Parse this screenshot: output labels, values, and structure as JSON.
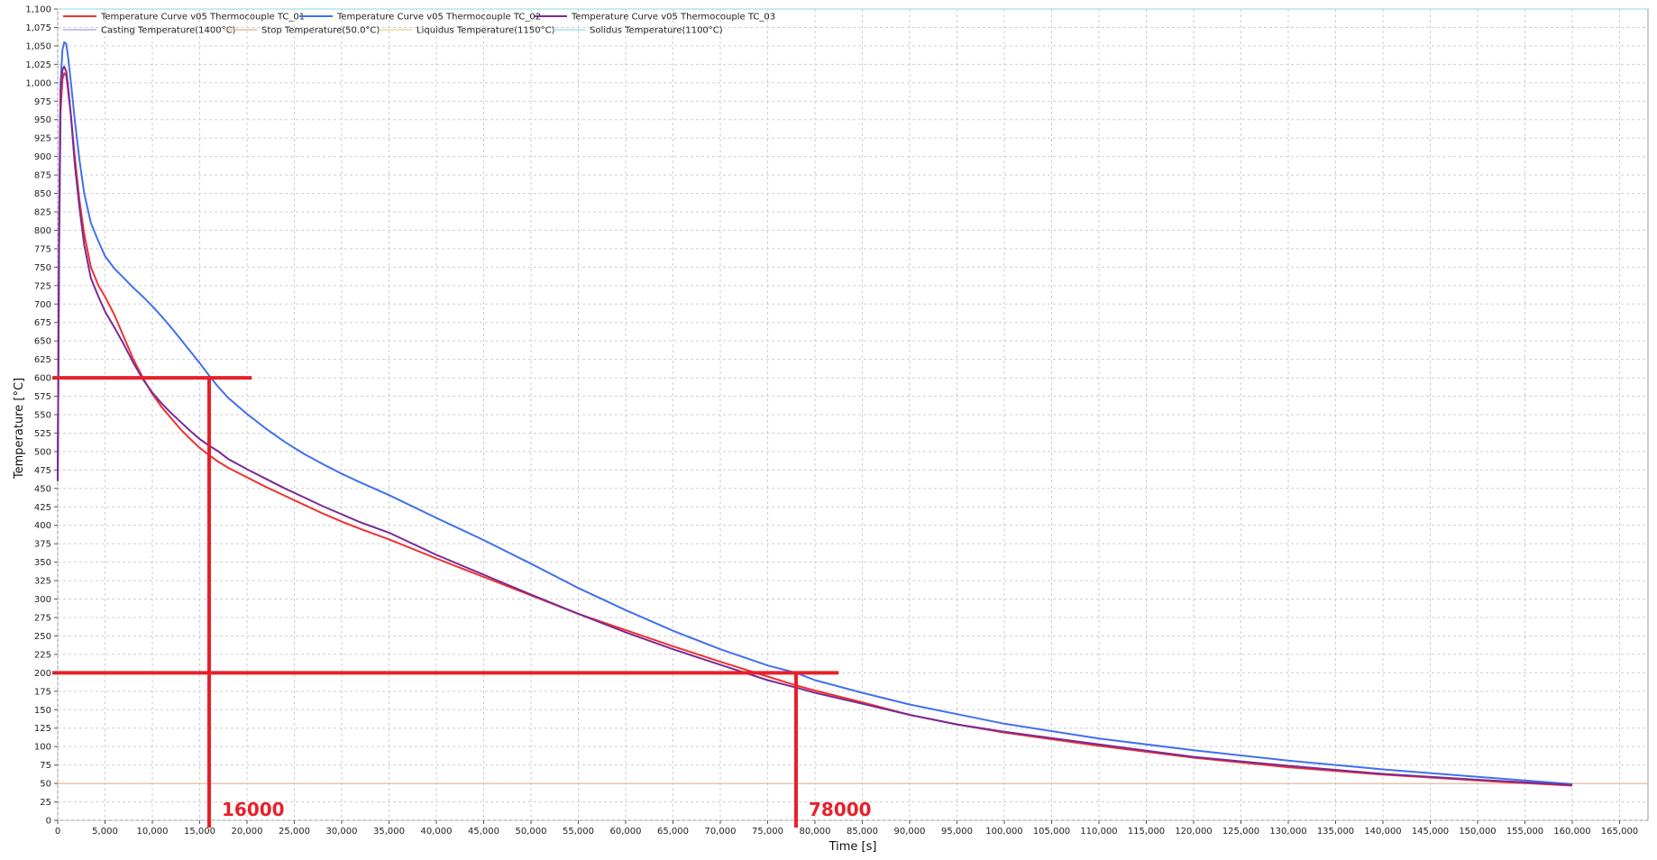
{
  "chart_data": {
    "type": "line",
    "xlabel": "Time [s]",
    "ylabel": "Temperature [°C]",
    "xlim": [
      0,
      168000
    ],
    "ylim": [
      0,
      1100
    ],
    "x_ticks": [
      0,
      5000,
      10000,
      15000,
      20000,
      25000,
      30000,
      35000,
      40000,
      45000,
      50000,
      55000,
      60000,
      65000,
      70000,
      75000,
      80000,
      85000,
      90000,
      95000,
      100000,
      105000,
      110000,
      115000,
      120000,
      125000,
      130000,
      135000,
      140000,
      145000,
      150000,
      155000,
      160000,
      165000
    ],
    "x_tick_labels": [
      "0",
      "5,000",
      "10,000",
      "15,000",
      "20,000",
      "25,000",
      "30,000",
      "35,000",
      "40,000",
      "45,000",
      "50,000",
      "55,000",
      "60,000",
      "65,000",
      "70,000",
      "75,000",
      "80,000",
      "85,000",
      "90,000",
      "95,000",
      "100,000",
      "105,000",
      "110,000",
      "115,000",
      "120,000",
      "125,000",
      "130,000",
      "135,000",
      "140,000",
      "145,000",
      "150,000",
      "155,000",
      "160,000",
      "165,000"
    ],
    "y_ticks": [
      0,
      25,
      50,
      75,
      100,
      125,
      150,
      175,
      200,
      225,
      250,
      275,
      300,
      325,
      350,
      375,
      400,
      425,
      450,
      475,
      500,
      525,
      550,
      575,
      600,
      625,
      650,
      675,
      700,
      725,
      750,
      775,
      800,
      825,
      850,
      875,
      900,
      925,
      950,
      975,
      1000,
      1025,
      1050,
      1075,
      1100
    ],
    "y_tick_labels": [
      "0",
      "25",
      "50",
      "75",
      "100",
      "125",
      "150",
      "175",
      "200",
      "225",
      "250",
      "275",
      "300",
      "325",
      "350",
      "375",
      "400",
      "425",
      "450",
      "475",
      "500",
      "525",
      "550",
      "575",
      "600",
      "625",
      "650",
      "675",
      "700",
      "725",
      "750",
      "775",
      "800",
      "825",
      "850",
      "875",
      "900",
      "925",
      "950",
      "975",
      "1,000",
      "1,025",
      "1,050",
      "1,075",
      "1,100"
    ],
    "grid": true,
    "legend_position": "top-left",
    "series": [
      {
        "name": "Temperature Curve  v05 Thermocouple TC_01",
        "color": "#f03030",
        "x": [
          0,
          150,
          300,
          500,
          700,
          900,
          1100,
          1400,
          1800,
          2300,
          2800,
          3500,
          4300,
          5000,
          6000,
          7000,
          8000,
          9000,
          10000,
          11000,
          12000,
          13000,
          14000,
          15000,
          16000,
          17000,
          18000,
          20000,
          22000,
          24000,
          26000,
          28000,
          30000,
          32000,
          35000,
          40000,
          45000,
          50000,
          55000,
          60000,
          65000,
          70000,
          75000,
          78000,
          80000,
          85000,
          90000,
          95000,
          100000,
          110000,
          120000,
          130000,
          140000,
          150000,
          160000
        ],
        "y": [
          460,
          780,
          960,
          1005,
          1013,
          1010,
          990,
          955,
          900,
          840,
          795,
          750,
          725,
          710,
          685,
          655,
          625,
          600,
          578,
          560,
          545,
          530,
          517,
          505,
          495,
          486,
          478,
          465,
          452,
          440,
          428,
          416,
          405,
          395,
          381,
          355,
          330,
          305,
          280,
          258,
          236,
          215,
          195,
          183,
          176,
          160,
          143,
          130,
          119,
          101,
          85,
          72,
          62,
          54,
          47
        ]
      },
      {
        "name": "Temperature Curve  v05 Thermocouple TC_02",
        "color": "#4070f0",
        "x": [
          0,
          150,
          300,
          500,
          700,
          900,
          1100,
          1400,
          1800,
          2300,
          2800,
          3500,
          4300,
          5000,
          6000,
          7000,
          8000,
          9000,
          10000,
          11000,
          12000,
          13000,
          14000,
          15000,
          16000,
          17000,
          18000,
          20000,
          22000,
          24000,
          26000,
          28000,
          30000,
          32000,
          35000,
          40000,
          45000,
          50000,
          55000,
          60000,
          65000,
          70000,
          75000,
          78000,
          80000,
          85000,
          90000,
          95000,
          100000,
          110000,
          120000,
          130000,
          140000,
          150000,
          160000
        ],
        "y": [
          460,
          800,
          1000,
          1045,
          1055,
          1053,
          1035,
          1000,
          950,
          895,
          850,
          810,
          785,
          765,
          748,
          735,
          722,
          710,
          697,
          683,
          668,
          652,
          636,
          620,
          603,
          587,
          573,
          551,
          531,
          513,
          497,
          483,
          470,
          458,
          441,
          410,
          380,
          348,
          315,
          285,
          257,
          232,
          210,
          200,
          190,
          173,
          157,
          144,
          131,
          111,
          95,
          81,
          69,
          59,
          49
        ]
      },
      {
        "name": "Temperature Curve  v05 Thermocouple TC_03",
        "color": "#7a2a96",
        "x": [
          0,
          150,
          300,
          500,
          700,
          900,
          1100,
          1400,
          1800,
          2300,
          2800,
          3500,
          4300,
          5000,
          6000,
          7000,
          8000,
          9000,
          10000,
          11000,
          12000,
          13000,
          14000,
          15000,
          16000,
          17000,
          18000,
          20000,
          22000,
          24000,
          26000,
          28000,
          30000,
          32000,
          35000,
          40000,
          45000,
          50000,
          55000,
          60000,
          65000,
          70000,
          75000,
          78000,
          80000,
          85000,
          90000,
          95000,
          100000,
          110000,
          120000,
          130000,
          140000,
          150000,
          160000
        ],
        "y": [
          460,
          800,
          990,
          1018,
          1022,
          1015,
          995,
          955,
          890,
          830,
          780,
          735,
          710,
          690,
          668,
          645,
          620,
          598,
          580,
          565,
          552,
          540,
          528,
          517,
          508,
          500,
          490,
          476,
          463,
          450,
          438,
          426,
          415,
          404,
          390,
          360,
          333,
          306,
          280,
          255,
          232,
          211,
          190,
          180,
          173,
          158,
          143,
          130,
          120,
          103,
          86,
          74,
          63,
          55,
          48
        ]
      }
    ],
    "legend": [
      {
        "label": "Temperature Curve  v05 Thermocouple TC_01",
        "color": "#f03030"
      },
      {
        "label": "Temperature Curve  v05 Thermocouple TC_02",
        "color": "#4070f0"
      },
      {
        "label": "Temperature Curve  v05 Thermocouple TC_03",
        "color": "#7a2a96"
      },
      {
        "label": "Casting Temperature(1400°C)",
        "color": "#b0b0e8"
      },
      {
        "label": "Stop Temperature(50.0°C)",
        "color": "#e8b89a"
      },
      {
        "label": "Liquidus Temperature(1150°C)",
        "color": "#e8d8a0"
      },
      {
        "label": "Solidus Temperature(1100°C)",
        "color": "#a0e0e8"
      }
    ],
    "reference_lines": [
      {
        "name": "Stop Temperature(50.0°C)",
        "y": 50,
        "color": "#e8b89a"
      },
      {
        "name": "Solidus Temperature(1100°C)",
        "y": 1100,
        "color": "#a0e0e8"
      }
    ],
    "annotations": [
      {
        "label": "16000",
        "x": 16000,
        "y": 600,
        "color": "#e8202a"
      },
      {
        "label": "78000",
        "x": 78000,
        "y": 200,
        "color": "#e8202a"
      }
    ]
  }
}
